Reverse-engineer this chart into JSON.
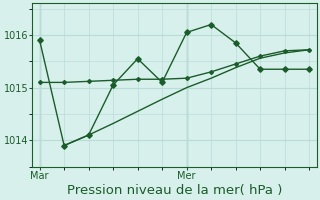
{
  "bg_color": "#d8f0ec",
  "grid_color": "#b8ddd8",
  "line_color": "#1a5c2a",
  "line1_x": [
    0,
    1,
    2,
    3,
    4,
    5,
    6,
    7,
    8,
    9,
    10,
    11
  ],
  "line1_y": [
    1015.9,
    1013.9,
    1014.1,
    1015.05,
    1015.55,
    1015.1,
    1016.05,
    1016.2,
    1015.85,
    1015.35,
    1015.35,
    1015.35
  ],
  "line2_x": [
    0,
    1,
    2,
    3,
    4,
    5,
    6,
    7,
    8,
    9,
    10,
    11
  ],
  "line2_y": [
    1015.1,
    1015.1,
    1015.12,
    1015.14,
    1015.16,
    1015.16,
    1015.18,
    1015.3,
    1015.45,
    1015.6,
    1015.7,
    1015.72
  ],
  "line3_x": [
    1,
    2,
    3,
    4,
    5,
    6,
    7,
    8,
    9,
    10,
    11
  ],
  "line3_y": [
    1013.9,
    1014.1,
    1014.32,
    1014.55,
    1014.78,
    1015.0,
    1015.18,
    1015.38,
    1015.56,
    1015.66,
    1015.72
  ],
  "mar_x": 0,
  "mer_x": 6,
  "yticks": [
    1014,
    1015,
    1016
  ],
  "ylim": [
    1013.5,
    1016.6
  ],
  "xlim": [
    -0.3,
    11.3
  ],
  "xlabel": "Pression niveau de la mer( hPa )",
  "xlabel_color": "#1a5c2a",
  "xlabel_fontsize": 9.5,
  "tick_fontsize": 7
}
